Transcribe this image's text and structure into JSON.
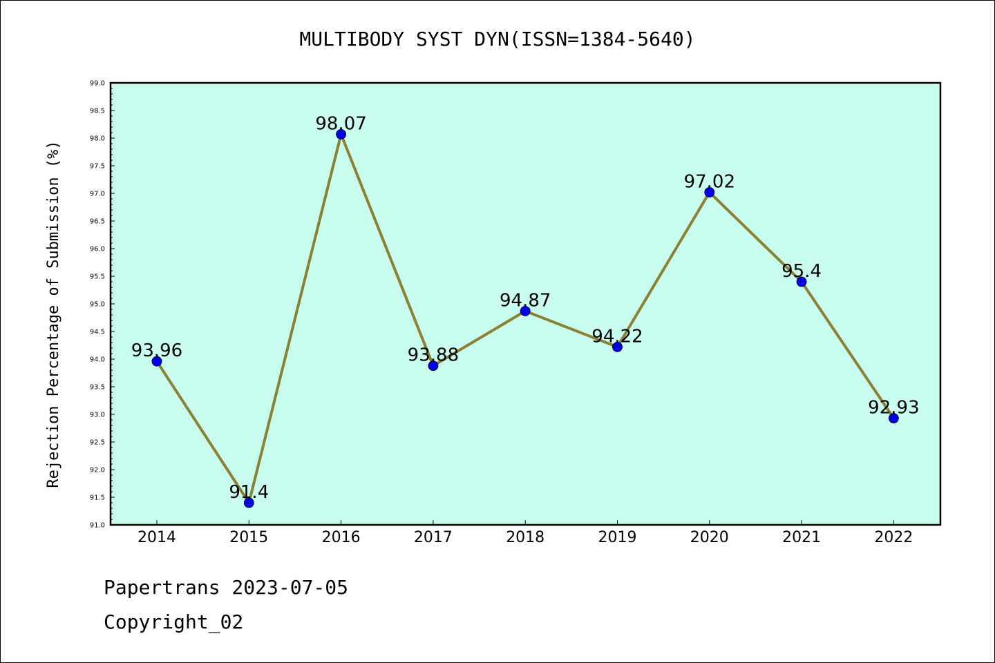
{
  "chart_data": {
    "type": "line",
    "title": "MULTIBODY SYST DYN(ISSN=1384-5640)",
    "xlabel": "",
    "ylabel": "Rejection Percentage of Submission (%)",
    "categories": [
      "2014",
      "2015",
      "2016",
      "2017",
      "2018",
      "2019",
      "2020",
      "2021",
      "2022"
    ],
    "values": [
      93.96,
      91.4,
      98.07,
      93.88,
      94.87,
      94.22,
      97.02,
      95.4,
      92.93
    ],
    "data_labels": [
      "93.96",
      "91.4",
      "98.07",
      "93.88",
      "94.87",
      "94.22",
      "97.02",
      "95.4",
      "92.93"
    ],
    "ylim": [
      91.0,
      99.0
    ],
    "yticks": [
      "91.0",
      "91.5",
      "92.0",
      "92.5",
      "93.0",
      "93.5",
      "94.0",
      "94.5",
      "95.0",
      "95.5",
      "96.0",
      "96.5",
      "97.0",
      "97.5",
      "98.0",
      "98.5",
      "99.0"
    ],
    "grid": false,
    "colors": {
      "plot_background": "#c8fcee",
      "line": "#8b8135",
      "marker": "#0000ee"
    }
  },
  "footer": {
    "source": "Papertrans 2023-07-05",
    "copyright": "Copyright_02"
  }
}
